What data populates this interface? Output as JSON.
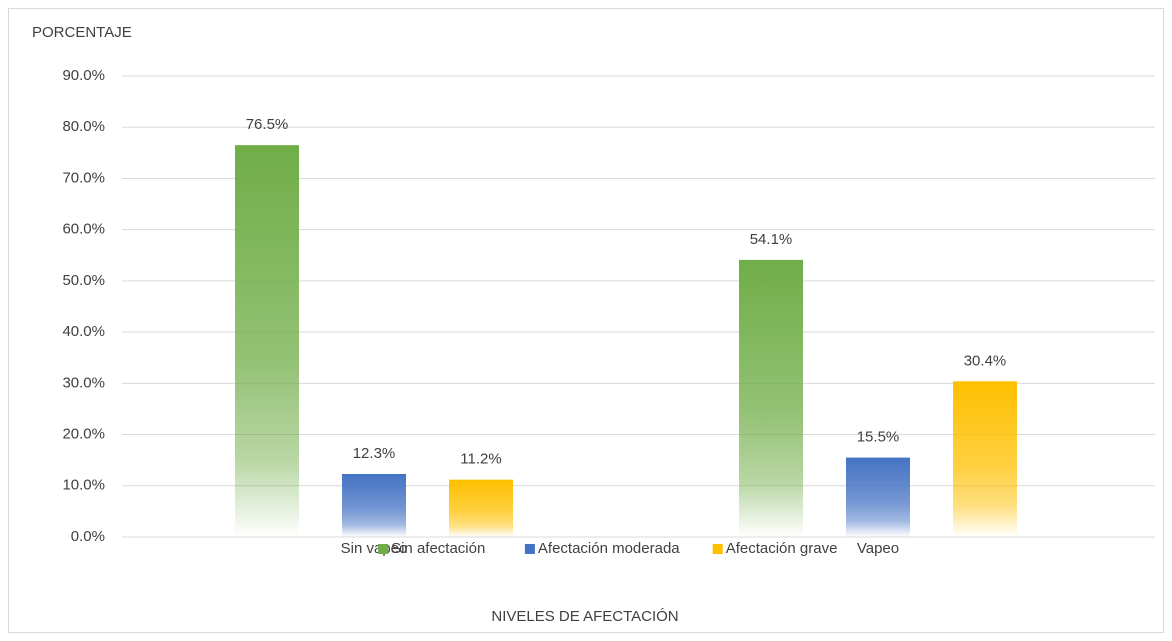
{
  "chart_data": {
    "type": "bar",
    "y_axis_label": "PORCENTAJE",
    "x_axis_label": "NIVELES DE AFECTACIÓN",
    "categories": [
      "Sin vapeo",
      "Vapeo"
    ],
    "series": [
      {
        "name": "Sin afectación",
        "color": "#70ad47",
        "values": [
          76.5,
          54.1
        ],
        "value_labels": [
          "76.5%",
          "54.1%"
        ]
      },
      {
        "name": "Afectación moderada",
        "color": "#4472c4",
        "values": [
          12.3,
          15.5
        ],
        "value_labels": [
          "12.3%",
          "15.5%"
        ]
      },
      {
        "name": "Afectación grave",
        "color": "#ffc000",
        "values": [
          11.2,
          30.4
        ],
        "value_labels": [
          "11.2%",
          "30.4%"
        ]
      }
    ],
    "ylim": [
      0,
      90
    ],
    "yticks": [
      {
        "value": 0,
        "label": "0.0%"
      },
      {
        "value": 10,
        "label": "10.0%"
      },
      {
        "value": 20,
        "label": "20.0%"
      },
      {
        "value": 30,
        "label": "30.0%"
      },
      {
        "value": 40,
        "label": "40.0%"
      },
      {
        "value": 50,
        "label": "50.0%"
      },
      {
        "value": 60,
        "label": "60.0%"
      },
      {
        "value": 70,
        "label": "70.0%"
      },
      {
        "value": 80,
        "label": "80.0%"
      },
      {
        "value": 90,
        "label": "90.0%"
      }
    ],
    "grid": true,
    "legend": "bottom"
  }
}
